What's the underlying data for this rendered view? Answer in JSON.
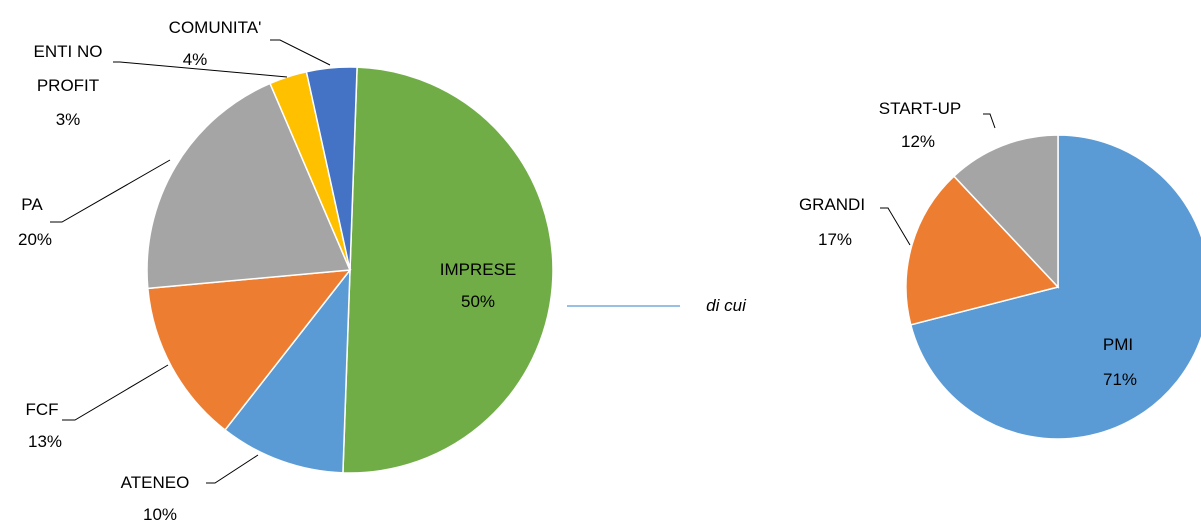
{
  "chart_data": [
    {
      "type": "pie",
      "categories": [
        "IMPRESE",
        "ATENEO",
        "FCF",
        "PA",
        "ENTI NO PROFIT",
        "COMUNITA'"
      ],
      "values": [
        50,
        10,
        13,
        20,
        3,
        4
      ],
      "value_labels": [
        "50%",
        "10%",
        "13%",
        "20%",
        "3%",
        "4%"
      ],
      "colors": [
        "#70ad47",
        "#5b9bd5",
        "#ed7d31",
        "#a5a5a5",
        "#ffc000",
        "#4472c4"
      ]
    },
    {
      "type": "pie",
      "categories": [
        "PMI",
        "GRANDI",
        "START-UP"
      ],
      "values": [
        71,
        17,
        12
      ],
      "value_labels": [
        "71%",
        "17%",
        "12%"
      ],
      "colors": [
        "#5b9bd5",
        "#ed7d31",
        "#a5a5a5"
      ]
    }
  ],
  "connector_label": "di cui"
}
